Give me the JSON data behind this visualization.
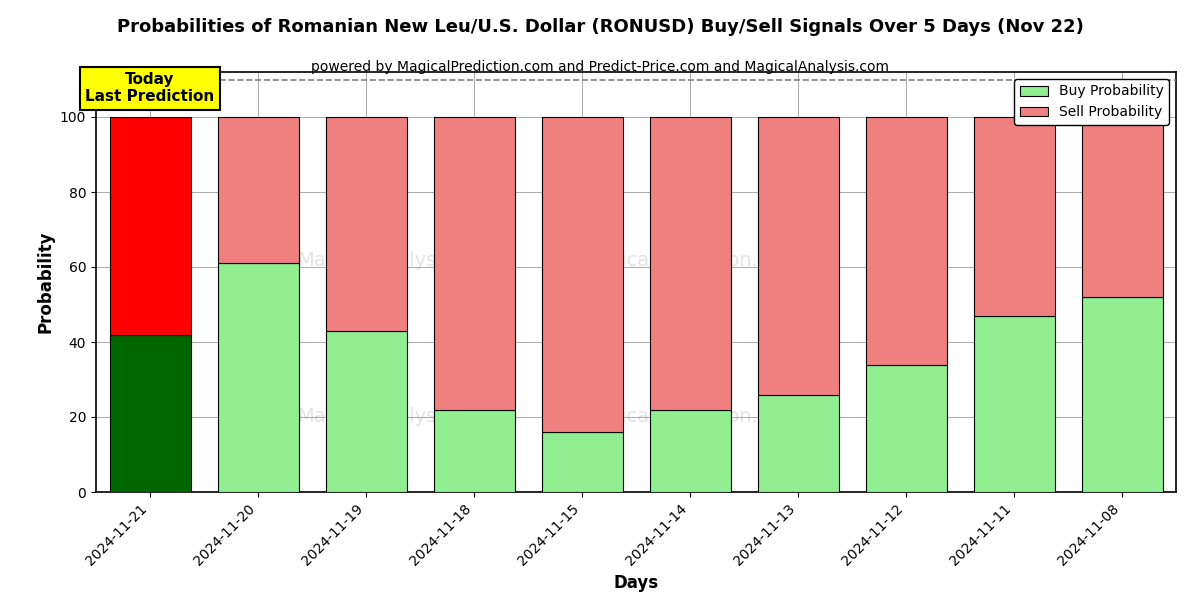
{
  "title": "Probabilities of Romanian New Leu/U.S. Dollar (RONUSD) Buy/Sell Signals Over 5 Days (Nov 22)",
  "subtitle": "powered by MagicalPrediction.com and Predict-Price.com and MagicalAnalysis.com",
  "xlabel": "Days",
  "ylabel": "Probability",
  "categories": [
    "2024-11-21",
    "2024-11-20",
    "2024-11-19",
    "2024-11-18",
    "2024-11-15",
    "2024-11-14",
    "2024-11-13",
    "2024-11-12",
    "2024-11-11",
    "2024-11-08"
  ],
  "buy_values": [
    42,
    61,
    43,
    22,
    16,
    22,
    26,
    34,
    47,
    52
  ],
  "sell_values": [
    58,
    39,
    57,
    78,
    84,
    78,
    74,
    66,
    53,
    48
  ],
  "buy_color_today": "#006600",
  "sell_color_today": "#ff0000",
  "buy_color": "#90EE90",
  "sell_color": "#F08080",
  "today_label": "Today\nLast Prediction",
  "today_label_bg": "#ffff00",
  "legend_buy_label": "Buy Probability",
  "legend_sell_label": "Sell Probability",
  "ylim": [
    0,
    112
  ],
  "yticks": [
    0,
    20,
    40,
    60,
    80,
    100
  ],
  "dashed_line_y": 110,
  "background_color": "#ffffff",
  "grid_color": "#aaaaaa",
  "title_fontsize": 13,
  "subtitle_fontsize": 10,
  "axis_label_fontsize": 12,
  "tick_fontsize": 10,
  "bar_width": 0.75
}
